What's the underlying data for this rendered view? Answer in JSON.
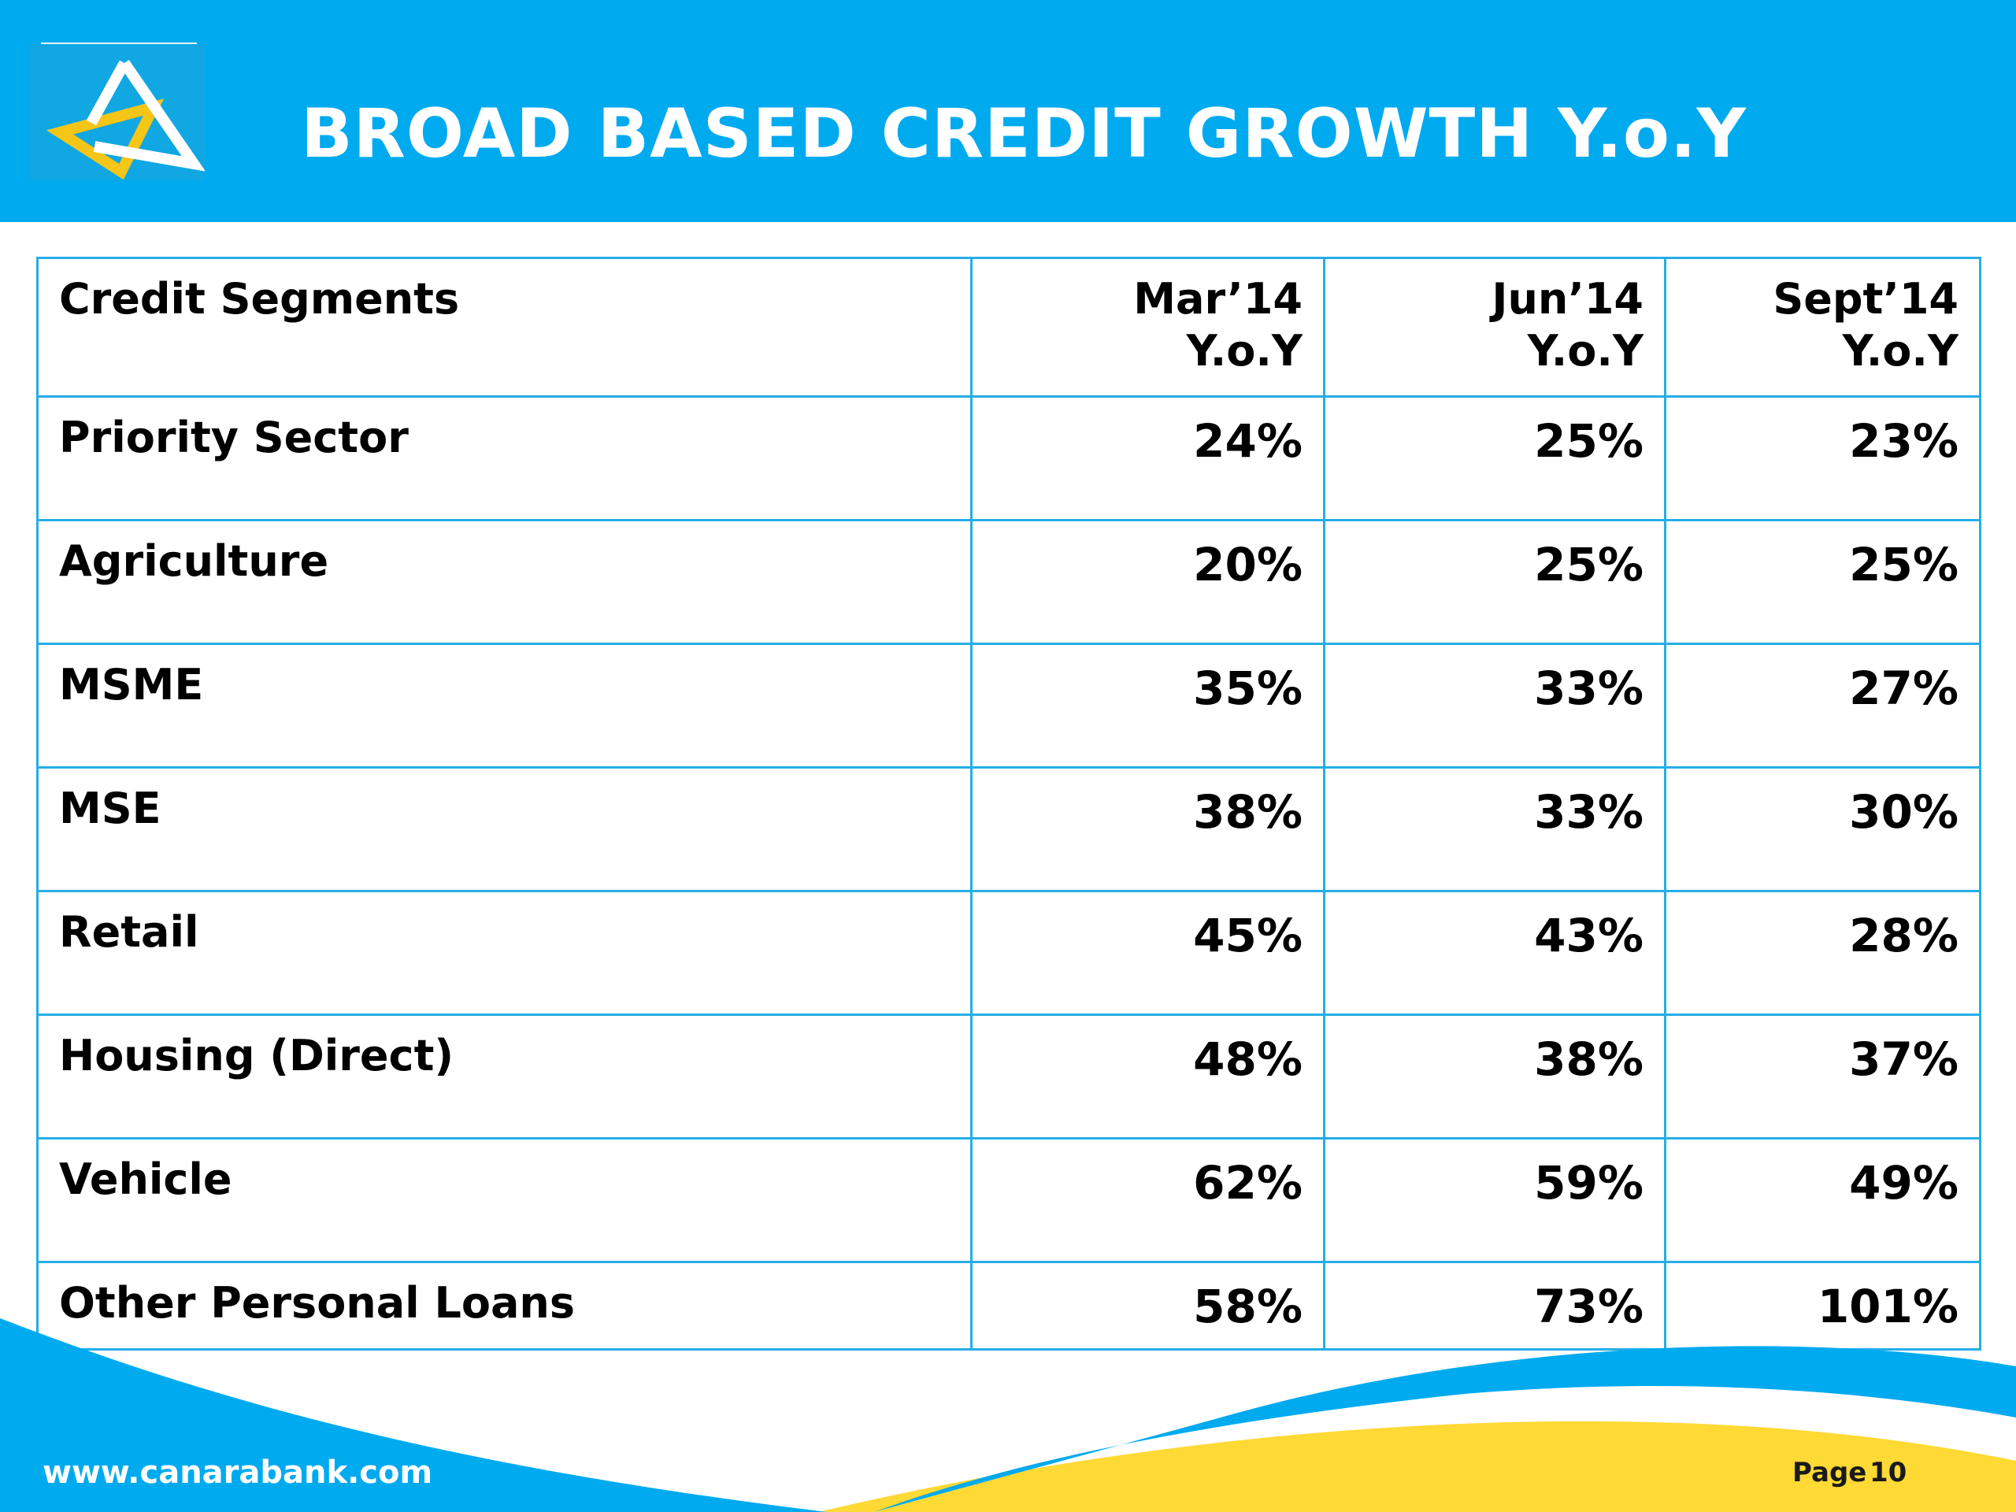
{
  "slide": {
    "title": "BROAD BASED CREDIT GROWTH Y.o.Y"
  },
  "logo": {
    "icon": "canara-bank-logo-icon",
    "colors": {
      "tile": "#10a7e2",
      "white_stroke": "#ffffff",
      "yellow_stroke": "#f5c518"
    }
  },
  "table": {
    "header": {
      "segment_label": "Credit Segments",
      "columns": [
        {
          "period": "Mar’14",
          "basis": "Y.o.Y"
        },
        {
          "period": "Jun’14",
          "basis": "Y.o.Y"
        },
        {
          "period": "Sept’14",
          "basis": "Y.o.Y"
        }
      ]
    },
    "rows": [
      {
        "segment": "Priority Sector",
        "values": [
          "24%",
          "25%",
          "23%"
        ]
      },
      {
        "segment": "Agriculture",
        "values": [
          "20%",
          "25%",
          "25%"
        ]
      },
      {
        "segment": "MSME",
        "values": [
          "35%",
          "33%",
          "27%"
        ]
      },
      {
        "segment": "MSE",
        "values": [
          "38%",
          "33%",
          "30%"
        ]
      },
      {
        "segment": "Retail",
        "values": [
          "45%",
          "43%",
          "28%"
        ]
      },
      {
        "segment": "Housing (Direct)",
        "values": [
          "48%",
          "38%",
          "37%"
        ]
      },
      {
        "segment": "Vehicle",
        "values": [
          "62%",
          "59%",
          "49%"
        ]
      },
      {
        "segment": "Other Personal Loans",
        "values": [
          "58%",
          "73%",
          "101%"
        ]
      }
    ]
  },
  "footer": {
    "website": "www.canarabank.com",
    "page_label": "Page",
    "page_number": "10"
  },
  "colors": {
    "brand_blue": "#00aaef",
    "table_border": "#25aee6",
    "footer_yellow": "#ffd934"
  }
}
